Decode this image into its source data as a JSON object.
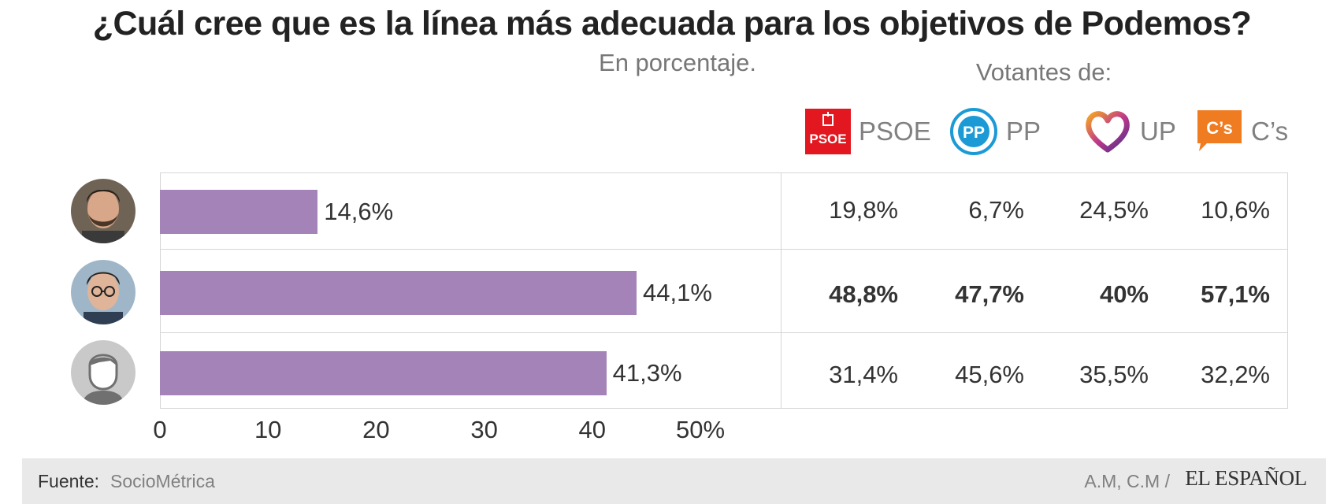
{
  "title": "¿Cuál cree que es la línea más adecuada para los objetivos de Podemos?",
  "subtitle": "En porcentaje.",
  "voters_label": "Votantes de:",
  "parties": [
    {
      "name": "PSOE",
      "logo_text": "PSOE",
      "icon": "psoe-logo-icon",
      "color": "#e3171f"
    },
    {
      "name": "PP",
      "logo_text": "PP",
      "icon": "pp-logo-icon",
      "color": "#1b9ad6"
    },
    {
      "name": "UP",
      "icon": "up-heart-logo-icon",
      "color": "#6b3a8c"
    },
    {
      "name": "C’s",
      "logo_text": "C’s",
      "icon": "cs-logo-icon",
      "color": "#f07c22"
    }
  ],
  "chart_data": {
    "type": "bar",
    "orientation": "horizontal",
    "categories": [
      "pablo-iglesias-avatar",
      "inigo-errejon-avatar",
      "generic-person-avatar"
    ],
    "values": [
      14.6,
      44.1,
      41.3
    ],
    "value_labels": [
      "14,6%",
      "44,1%",
      "41,3%"
    ],
    "xlim": [
      0,
      50
    ],
    "ticks": [
      "0",
      "10",
      "20",
      "30",
      "40",
      "50%"
    ],
    "bar_color": "#a383b8",
    "table": {
      "columns": [
        "PSOE",
        "PP",
        "UP",
        "C’s"
      ],
      "rows": [
        {
          "cells": [
            "19,8%",
            "6,7%",
            "24,5%",
            "10,6%"
          ],
          "bold": false
        },
        {
          "cells": [
            "48,8%",
            "47,7%",
            "40%",
            "57,1%"
          ],
          "bold": true
        },
        {
          "cells": [
            "31,4%",
            "45,6%",
            "35,5%",
            "32,2%"
          ],
          "bold": false
        }
      ]
    }
  },
  "footer": {
    "source_label": "Fuente:",
    "source_value": "SocioMétrica",
    "credit": "A.M, C.M /",
    "brand": "EL ESPAÑOL"
  }
}
